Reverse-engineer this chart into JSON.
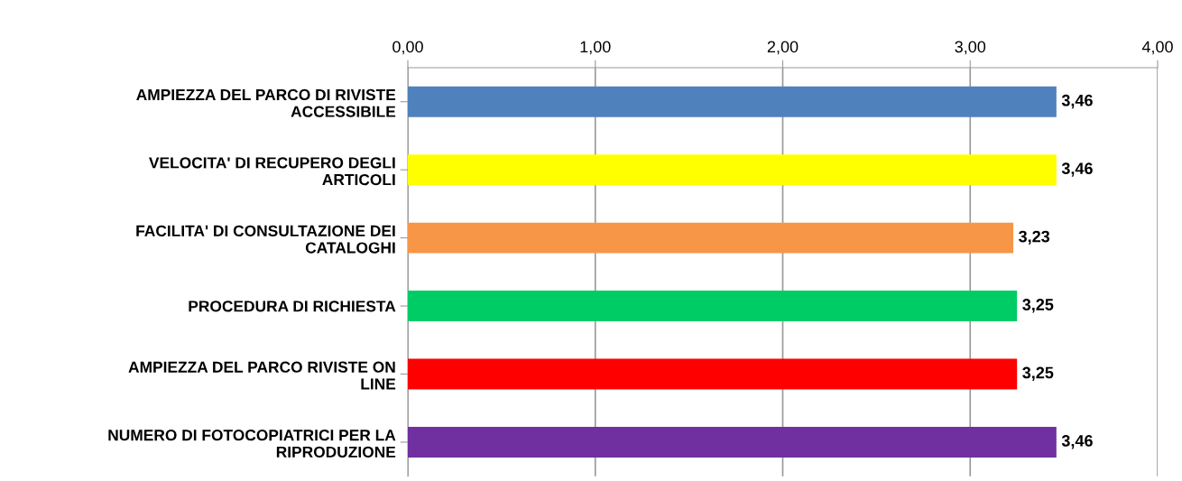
{
  "chart_data": {
    "type": "bar",
    "orientation": "horizontal",
    "categories": [
      "AMPIEZZA DEL PARCO DI RIVISTE\nACCESSIBILE",
      "VELOCITA' DI RECUPERO DEGLI\nARTICOLI",
      "FACILITA' DI CONSULTAZIONE DEI\nCATALOGHI",
      "PROCEDURA DI RICHIESTA",
      "AMPIEZZA DEL PARCO RIVISTE ON\nLINE",
      "NUMERO DI FOTOCOPIATRICI PER LA\nRIPRODUZIONE"
    ],
    "values": [
      3.46,
      3.46,
      3.23,
      3.25,
      3.25,
      3.46
    ],
    "value_labels": [
      "3,46",
      "3,46",
      "3,23",
      "3,25",
      "3,25",
      "3,46"
    ],
    "colors": [
      "#4f81bd",
      "#ffff00",
      "#f79646",
      "#00cc66",
      "#ff0000",
      "#7030a0"
    ],
    "xlim": [
      0,
      4
    ],
    "xticks": [
      {
        "value": 0,
        "label": "0,00"
      },
      {
        "value": 1,
        "label": "1,00"
      },
      {
        "value": 2,
        "label": "2,00"
      },
      {
        "value": 3,
        "label": "3,00"
      },
      {
        "value": 4,
        "label": "4,00"
      }
    ],
    "grid": "x",
    "legend": false
  }
}
